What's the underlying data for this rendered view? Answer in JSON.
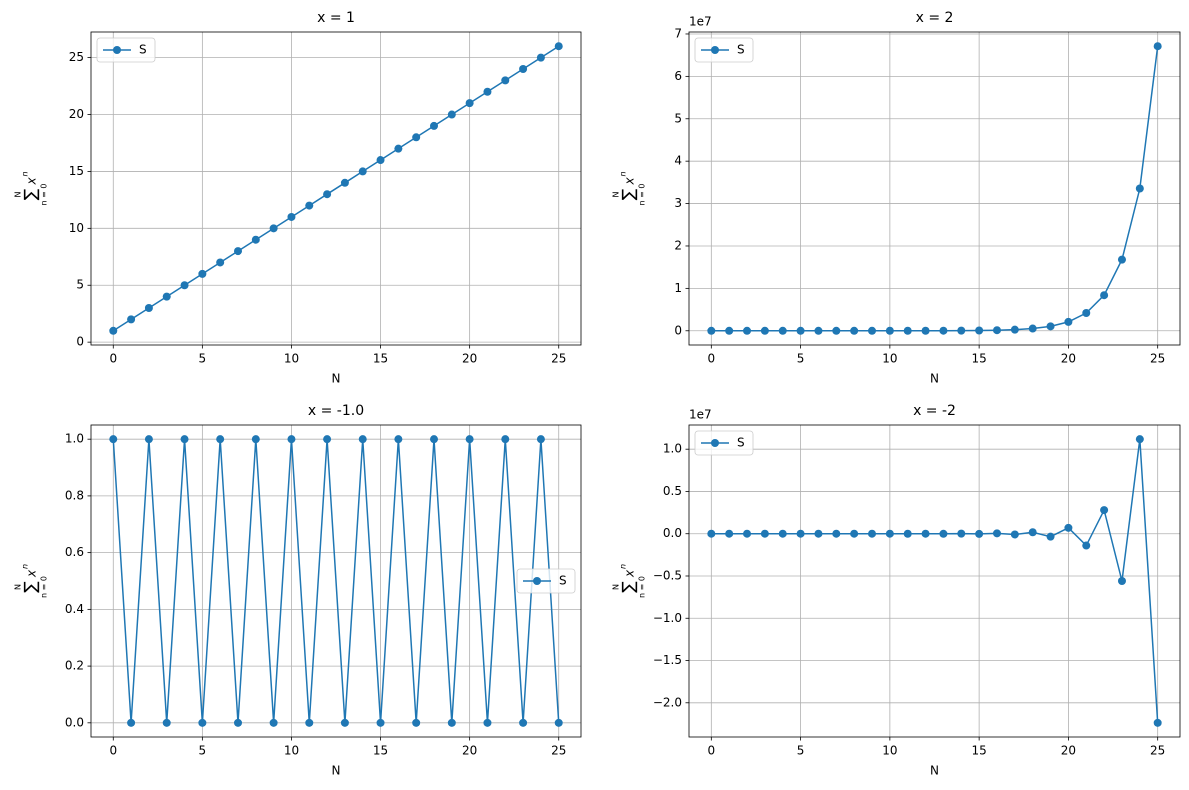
{
  "chart_data": [
    {
      "type": "line",
      "title": "x = 1",
      "xlabel": "N",
      "ylabel": {
        "sum": "∑",
        "upper": "N",
        "lower": "n = 0",
        "base": "x",
        "exp": "n"
      },
      "x": [
        0,
        1,
        2,
        3,
        4,
        5,
        6,
        7,
        8,
        9,
        10,
        11,
        12,
        13,
        14,
        15,
        16,
        17,
        18,
        19,
        20,
        21,
        22,
        23,
        24,
        25
      ],
      "series": [
        {
          "name": "S",
          "color": "#1f77b4",
          "values": [
            1,
            2,
            3,
            4,
            5,
            6,
            7,
            8,
            9,
            10,
            11,
            12,
            13,
            14,
            15,
            16,
            17,
            18,
            19,
            20,
            21,
            22,
            23,
            24,
            25,
            26
          ]
        }
      ],
      "xlim": [
        -1.25,
        26.25
      ],
      "xticks": [
        0,
        5,
        10,
        15,
        20,
        25
      ],
      "ylim": [
        -0.25,
        27.25
      ],
      "yticks": [
        0,
        5,
        10,
        15,
        20,
        25
      ],
      "grid": true,
      "legend": "upper-left"
    },
    {
      "type": "line",
      "title": "x = 2",
      "xlabel": "N",
      "ylabel": {
        "sum": "∑",
        "upper": "N",
        "lower": "n = 0",
        "base": "x",
        "exp": "n"
      },
      "y_offset_label": "1e7",
      "x": [
        0,
        1,
        2,
        3,
        4,
        5,
        6,
        7,
        8,
        9,
        10,
        11,
        12,
        13,
        14,
        15,
        16,
        17,
        18,
        19,
        20,
        21,
        22,
        23,
        24,
        25
      ],
      "series": [
        {
          "name": "S",
          "color": "#1f77b4",
          "values": [
            1,
            3,
            7,
            15,
            31,
            63,
            127,
            255,
            511,
            1023,
            2047,
            4095,
            8191,
            16383,
            32767,
            65535,
            131071,
            262143,
            524287,
            1048575,
            2097151,
            4194303,
            8388607,
            16777215,
            33554431,
            67108863
          ]
        }
      ],
      "xlim": [
        -1.25,
        26.25
      ],
      "xticks": [
        0,
        5,
        10,
        15,
        20,
        25
      ],
      "ylim": [
        -3355442,
        70464306
      ],
      "yticks": [
        0,
        {
          "value": 10000000,
          "label": "1"
        },
        {
          "value": 20000000,
          "label": "2"
        },
        {
          "value": 30000000,
          "label": "3"
        },
        {
          "value": 40000000,
          "label": "4"
        },
        {
          "value": 50000000,
          "label": "5"
        },
        {
          "value": 60000000,
          "label": "6"
        },
        {
          "value": 70000000,
          "label": "7"
        }
      ],
      "grid": true,
      "legend": "upper-left"
    },
    {
      "type": "line",
      "title": "x = -1.0",
      "xlabel": "N",
      "ylabel": {
        "sum": "∑",
        "upper": "N",
        "lower": "n = 0",
        "base": "x",
        "exp": "n"
      },
      "x": [
        0,
        1,
        2,
        3,
        4,
        5,
        6,
        7,
        8,
        9,
        10,
        11,
        12,
        13,
        14,
        15,
        16,
        17,
        18,
        19,
        20,
        21,
        22,
        23,
        24,
        25
      ],
      "series": [
        {
          "name": "S",
          "color": "#1f77b4",
          "values": [
            1,
            0,
            1,
            0,
            1,
            0,
            1,
            0,
            1,
            0,
            1,
            0,
            1,
            0,
            1,
            0,
            1,
            0,
            1,
            0,
            1,
            0,
            1,
            0,
            1,
            0
          ]
        }
      ],
      "xlim": [
        -1.25,
        26.25
      ],
      "xticks": [
        0,
        5,
        10,
        15,
        20,
        25
      ],
      "ylim": [
        -0.05,
        1.05
      ],
      "yticks": [
        {
          "value": 0,
          "label": "0.0"
        },
        0.2,
        0.4,
        0.6,
        0.8,
        {
          "value": 1,
          "label": "1.0"
        }
      ],
      "grid": true,
      "legend": "center-right"
    },
    {
      "type": "line",
      "title": "x = -2",
      "xlabel": "N",
      "ylabel": {
        "sum": "∑",
        "upper": "N",
        "lower": "n = 0",
        "base": "x",
        "exp": "n"
      },
      "y_offset_label": "1e7",
      "x": [
        0,
        1,
        2,
        3,
        4,
        5,
        6,
        7,
        8,
        9,
        10,
        11,
        12,
        13,
        14,
        15,
        16,
        17,
        18,
        19,
        20,
        21,
        22,
        23,
        24,
        25
      ],
      "series": [
        {
          "name": "S",
          "color": "#1f77b4",
          "values": [
            1,
            -1,
            3,
            -5,
            11,
            -21,
            43,
            -85,
            171,
            -341,
            683,
            -1365,
            2731,
            -5461,
            10923,
            -21845,
            43691,
            -87381,
            174763,
            -349525,
            699051,
            -1398101,
            2796203,
            -5592405,
            11184811,
            -22369621
          ]
        }
      ],
      "xlim": [
        -1.25,
        26.25
      ],
      "xticks": [
        0,
        5,
        10,
        15,
        20,
        25
      ],
      "ylim": [
        -24047343,
        12862533
      ],
      "yticks": [
        {
          "value": -20000000,
          "label": "−2.0"
        },
        {
          "value": -15000000,
          "label": "−1.5"
        },
        {
          "value": -10000000,
          "label": "−1.0"
        },
        {
          "value": -5000000,
          "label": "−0.5"
        },
        {
          "value": 0,
          "label": "0.0"
        },
        {
          "value": 5000000,
          "label": "0.5"
        },
        {
          "value": 10000000,
          "label": "1.0"
        }
      ],
      "grid": true,
      "legend": "upper-left"
    }
  ]
}
